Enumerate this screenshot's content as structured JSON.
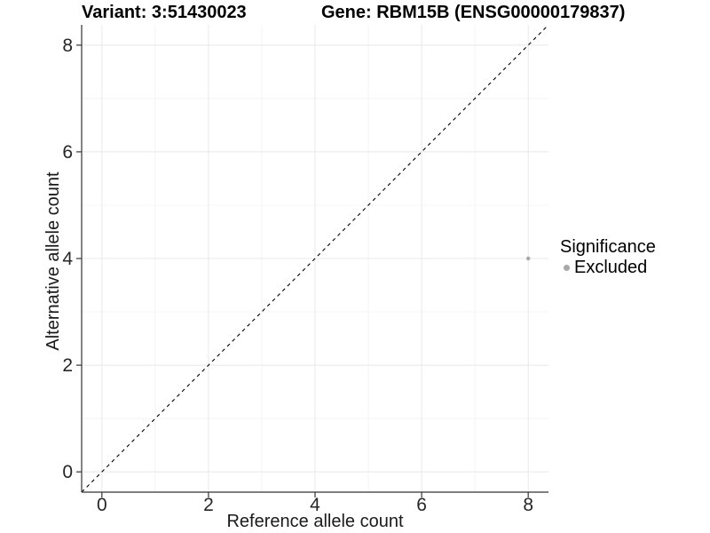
{
  "header": {
    "variant_title": "Variant: 3:51430023",
    "gene_title": "Gene: RBM15B (ENSG00000179837)"
  },
  "legend": {
    "title": "Significance",
    "items": [
      {
        "label": "Excluded",
        "color": "#a8a8a8"
      }
    ]
  },
  "colors": {
    "background": "#ffffff",
    "grid_major": "#e8e8e8",
    "grid_minor": "#f4f4f4",
    "axis_line": "#333333",
    "tick_mark": "#333333",
    "tick_text": "#262626",
    "reference_line": "#000000"
  },
  "chart_data": {
    "type": "scatter",
    "title": "Variant: 3:51430023    Gene: RBM15B (ENSG00000179837)",
    "xlabel": "Reference allele count",
    "ylabel": "Alternative allele count",
    "xlim": [
      -0.38,
      8.38
    ],
    "ylim": [
      -0.38,
      8.38
    ],
    "x_ticks": [
      0,
      2,
      4,
      6,
      8
    ],
    "y_ticks": [
      0,
      2,
      4,
      6,
      8
    ],
    "x_minor_ticks": [
      1,
      3,
      5,
      7
    ],
    "y_minor_ticks": [
      1,
      3,
      5,
      7
    ],
    "grid": true,
    "legend_position": "right",
    "legend_title": "Significance",
    "series": [
      {
        "name": "Excluded",
        "color": "#a8a8a8",
        "points": [
          {
            "x": 8,
            "y": 4
          }
        ]
      }
    ],
    "reference_line": {
      "slope": 1,
      "intercept": 0,
      "style": "dashed",
      "color": "#000000"
    }
  }
}
